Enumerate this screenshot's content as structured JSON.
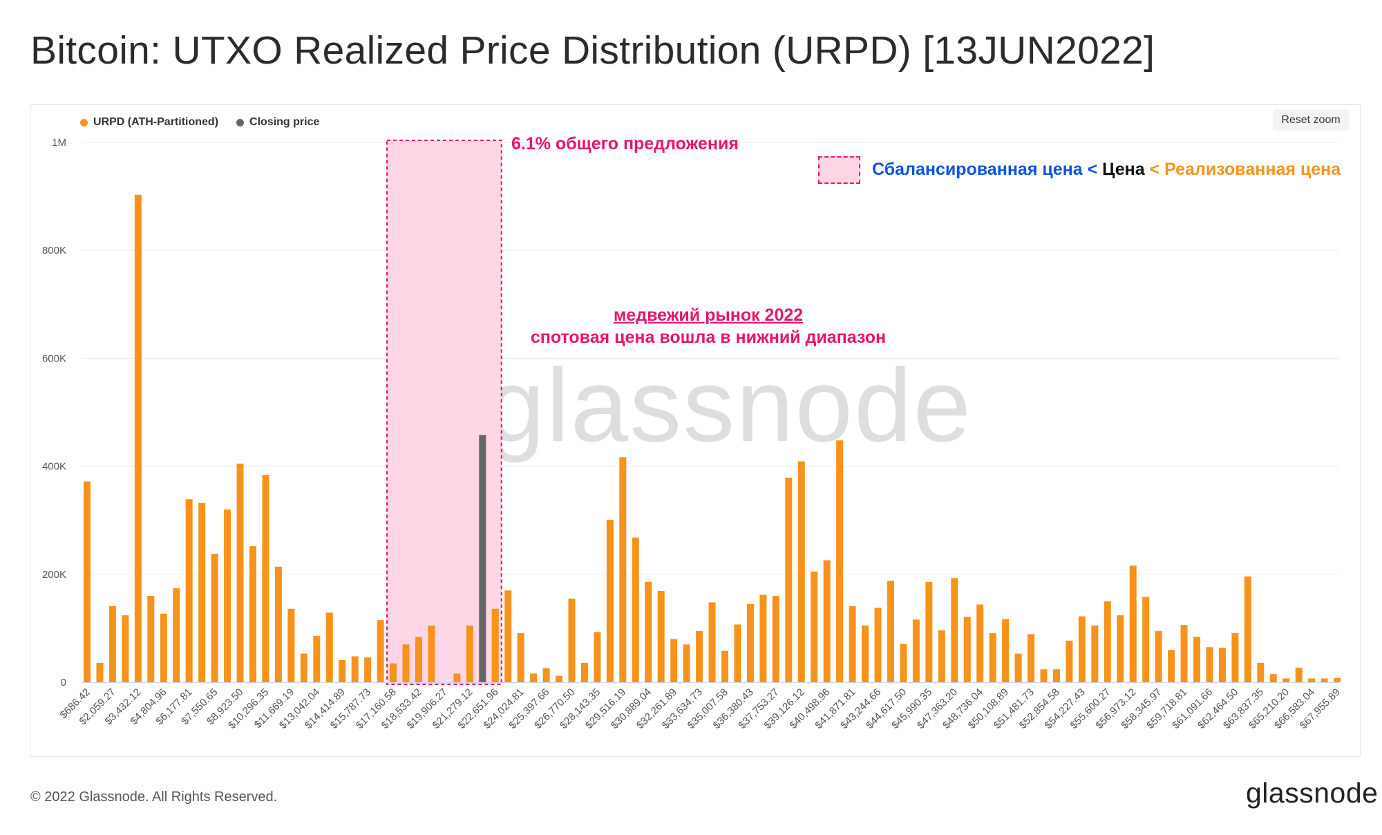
{
  "title": "Bitcoin: UTXO Realized Price Distribution (URPD) [13JUN2022]",
  "reset_zoom": "Reset zoom",
  "watermark": "glassnode",
  "footer": {
    "copyright": "© 2022 Glassnode. All Rights Reserved.",
    "logo": "glassnode"
  },
  "annotations": {
    "supply_share": "6.1% общего предложения",
    "key_part1": "Сбалансированная цена",
    "key_sep1": " < ",
    "key_part2": "Цена",
    "key_sep2": " < ",
    "key_part3": "Реализованная цена",
    "bear_line1": "медвежий рынок 2022",
    "bear_line2": "спотовая цена вошла в нижний диапазон"
  },
  "colors": {
    "urpd": "#f7931a",
    "closing": "#666666",
    "highlight": "#e8146c",
    "blue": "#0a55e0",
    "black": "#111111",
    "orange": "#f7931a"
  },
  "chart_data": {
    "type": "bar",
    "title": "Bitcoin: UTXO Realized Price Distribution (URPD) [13JUN2022]",
    "xlabel": "",
    "ylabel": "",
    "ylim": [
      0,
      1000000
    ],
    "yticks": [
      0,
      200000,
      400000,
      600000,
      800000,
      1000000
    ],
    "ytick_labels": [
      "0",
      "200K",
      "400K",
      "600K",
      "800K",
      "1M"
    ],
    "grid": true,
    "legend": {
      "placement": "top-left",
      "entries": [
        {
          "name": "URPD (ATH-Partitioned)",
          "color": "#f7931a"
        },
        {
          "name": "Closing price",
          "color": "#666666"
        }
      ]
    },
    "tick_labels": [
      "$686.42",
      "$2,059.27",
      "$3,432.12",
      "$4,804.96",
      "$6,177.81",
      "$7,550.65",
      "$8,923.50",
      "$10,296.35",
      "$11,669.19",
      "$13,042.04",
      "$14,414.89",
      "$15,787.73",
      "$17,160.58",
      "$18,533.42",
      "$19,906.27",
      "$21,279.12",
      "$22,651.96",
      "$24,024.81",
      "$25,397.66",
      "$26,770.50",
      "$28,143.35",
      "$29,516.19",
      "$30,889.04",
      "$32,261.89",
      "$33,634.73",
      "$35,007.58",
      "$36,380.43",
      "$37,753.27",
      "$39,126.12",
      "$40,498.96",
      "$41,871.81",
      "$43,244.66",
      "$44,617.50",
      "$45,990.35",
      "$47,363.20",
      "$48,736.04",
      "$50,108.89",
      "$51,481.73",
      "$52,854.58",
      "$54,227.43",
      "$55,600.27",
      "$56,973.12",
      "$58,345.97",
      "$59,718.81",
      "$61,091.66",
      "$62,464.50",
      "$63,837.35",
      "$65,210.20",
      "$66,583.04",
      "$67,955.89"
    ],
    "series": [
      {
        "name": "URPD (ATH-Partitioned)",
        "values": [
          372000,
          36000,
          141000,
          124000,
          903000,
          160000,
          127000,
          174000,
          339000,
          332000,
          238000,
          320000,
          405000,
          252000,
          384000,
          214000,
          136000,
          53000,
          86000,
          129000,
          41000,
          48000,
          46000,
          115000,
          35000,
          70000,
          84000,
          105000,
          0,
          16000,
          105000,
          458000,
          136000,
          170000,
          91000,
          16000,
          26000,
          12000,
          155000,
          36000,
          93000,
          301000,
          417000,
          268000,
          186000,
          169000,
          80000,
          70000,
          95000,
          148000,
          58000,
          107000,
          145000,
          162000,
          160000,
          379000,
          409000,
          205000,
          226000,
          448000,
          141000,
          105000,
          138000,
          188000,
          71000,
          116000,
          186000,
          96000,
          193000,
          121000,
          144000,
          91000,
          117000,
          53000,
          89000,
          24000,
          24000,
          77000,
          122000,
          105000,
          150000,
          124000,
          216000,
          158000,
          95000,
          60000,
          106000,
          84000,
          65000,
          64000,
          91000,
          196000,
          36000,
          15000,
          7000,
          27000,
          7000,
          7000,
          8000
        ]
      },
      {
        "name": "Closing price",
        "values": [
          {
            "index": 31,
            "value": 458000
          }
        ]
      }
    ],
    "highlight_region": {
      "from_label": "$17,160.58",
      "to_label": "$22,651.96",
      "note": "6.1% общего предложения"
    }
  }
}
